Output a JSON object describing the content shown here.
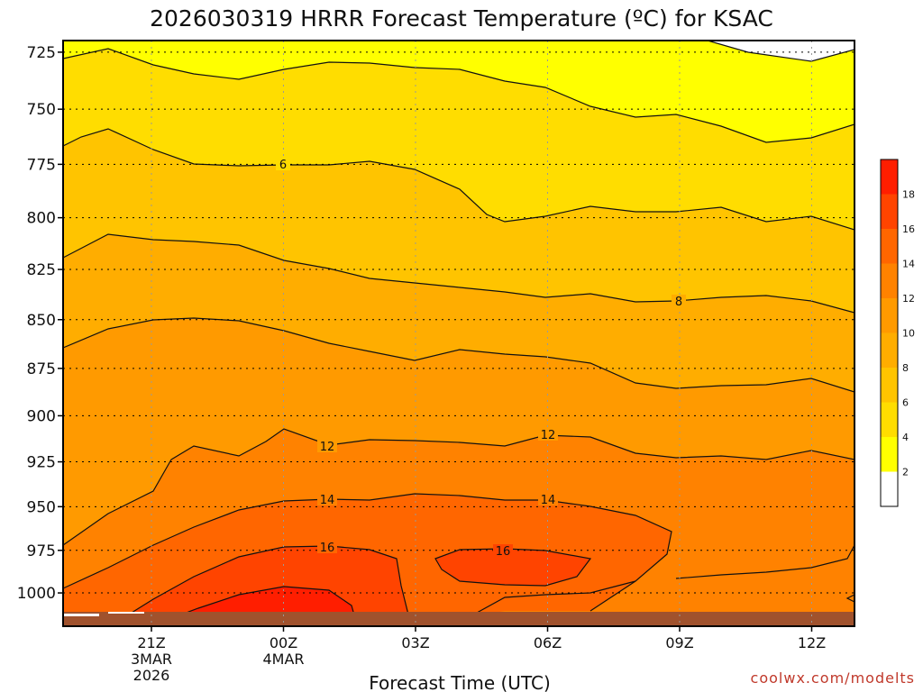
{
  "chart_data": {
    "type": "heatmap",
    "title": "2026030319 HRRR Forecast Temperature (ºC) for KSAC",
    "xlabel": "Forecast Time (UTC)",
    "ylabel": "",
    "credit": "coolwx.com/modelts",
    "y_axis": {
      "scale": "log",
      "reversed": true,
      "range": [
        720,
        1020
      ],
      "unit": "hPa",
      "ticks": [
        725,
        750,
        775,
        800,
        825,
        850,
        875,
        900,
        925,
        950,
        975,
        1000
      ]
    },
    "x_axis": {
      "ticks": [
        {
          "label": "21Z",
          "date_line1": "3MAR",
          "date_line2": "2026"
        },
        {
          "label": "00Z",
          "date_line1": "4MAR",
          "date_line2": ""
        },
        {
          "label": "03Z",
          "date_line1": "",
          "date_line2": ""
        },
        {
          "label": "06Z",
          "date_line1": "",
          "date_line2": ""
        },
        {
          "label": "09Z",
          "date_line1": "",
          "date_line2": ""
        },
        {
          "label": "12Z",
          "date_line1": "",
          "date_line2": ""
        }
      ]
    },
    "grid": true,
    "colorbar": {
      "position": "right",
      "levels": [
        2,
        4,
        6,
        8,
        10,
        12,
        14,
        16,
        18
      ],
      "colors": [
        "#ffffff",
        "#ffff00",
        "#ffdd00",
        "#ffc400",
        "#ffad00",
        "#ff9a00",
        "#ff8200",
        "#ff6600",
        "#ff4400",
        "#ff1e00",
        "#ff0000"
      ]
    },
    "contour_labels": [
      {
        "text": "6",
        "time": "23Z",
        "pressure": 776
      },
      {
        "text": "8",
        "time": "09Z",
        "pressure": 846
      },
      {
        "text": "12",
        "time": "02Z",
        "pressure": 925
      },
      {
        "text": "12",
        "time": "06Z",
        "pressure": 919
      },
      {
        "text": "14",
        "time": "01Z",
        "pressure": 949
      },
      {
        "text": "14",
        "time": "06Z",
        "pressure": 949
      },
      {
        "text": "16",
        "time": "01Z",
        "pressure": 976
      },
      {
        "text": "16",
        "time": "05Z",
        "pressure": 981
      }
    ],
    "ground_color": "#a0522d"
  }
}
